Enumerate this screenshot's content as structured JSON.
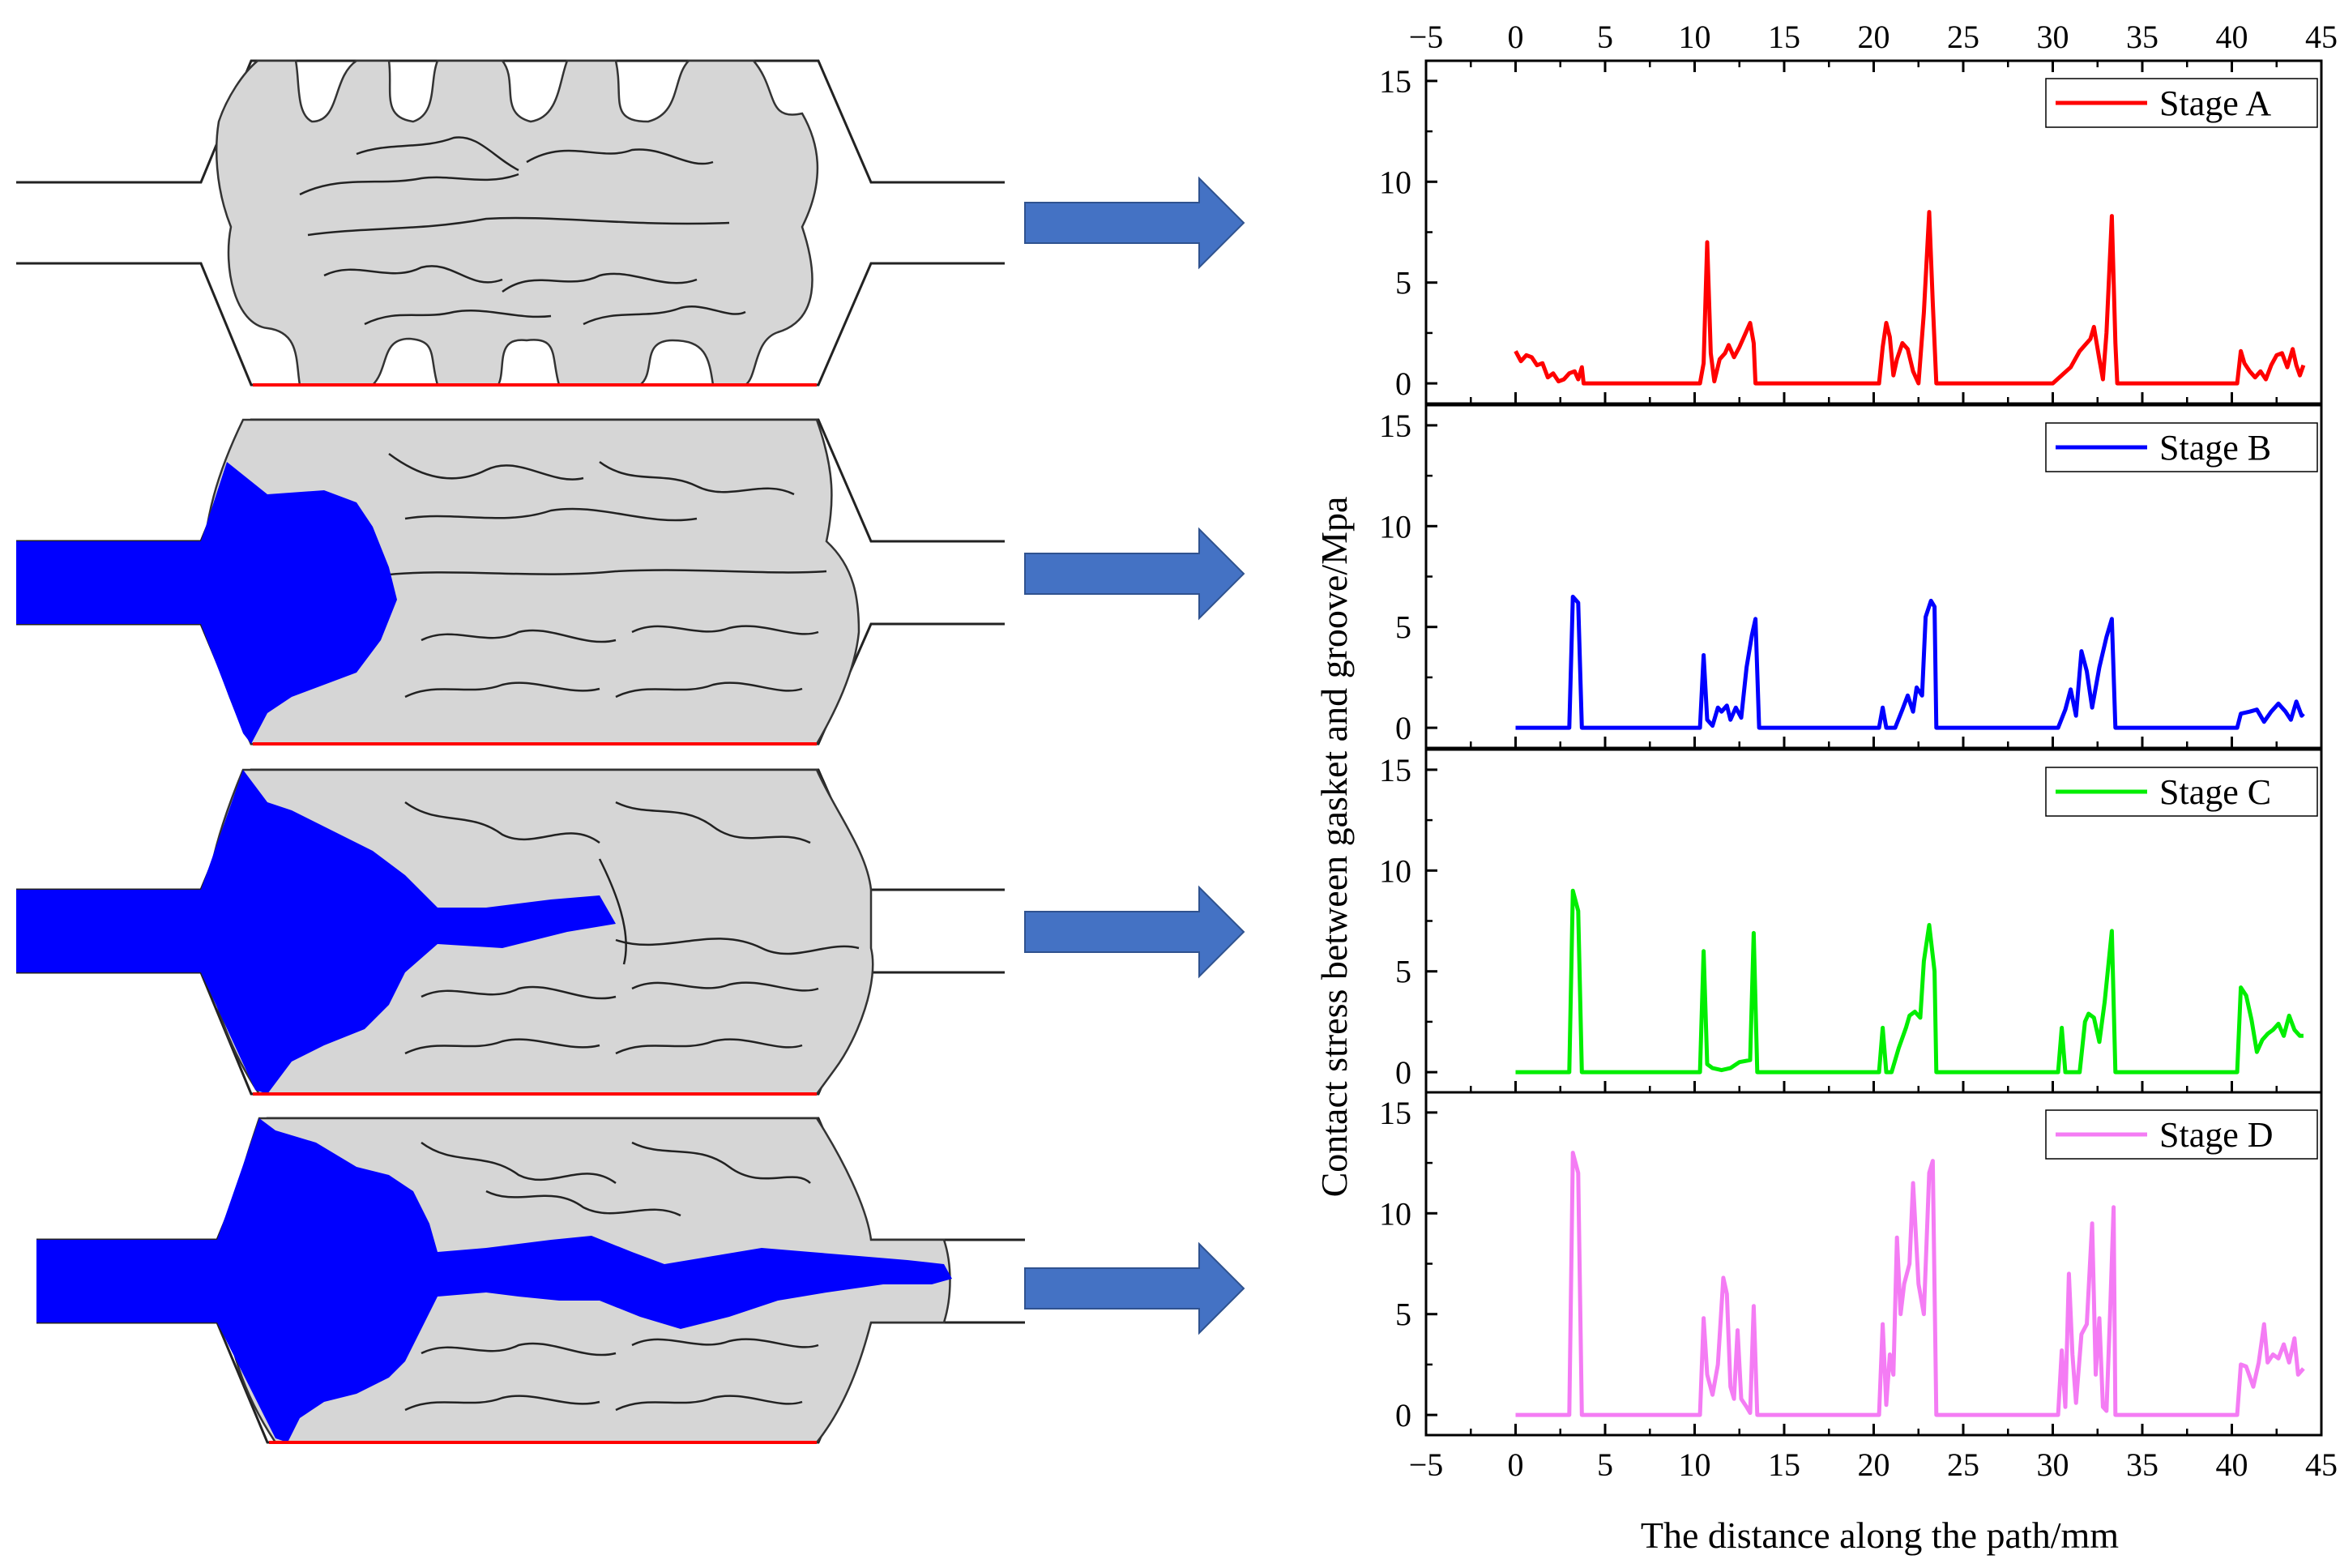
{
  "figure": {
    "y_axis_label": "Contact stress between gasket and groove/Mpa",
    "x_axis_label": "The distance along the path/mm",
    "x_ticks": [
      "−5",
      "0",
      "5",
      "10",
      "15",
      "20",
      "25",
      "30",
      "35",
      "40",
      "45"
    ],
    "y_ticks": [
      "0",
      "5",
      "10",
      "15"
    ]
  },
  "colors": {
    "gasket_fill": "#d6d6d6",
    "fluid_fill": "#0000ff",
    "arrow_fill": "#4472c4",
    "path_line": "#ff0000"
  },
  "chart_data": {
    "type": "line",
    "xlabel": "The distance along the path/mm",
    "ylabel": "Contact stress between gasket and groove/Mpa",
    "xlim": [
      -5,
      45
    ],
    "ylim": [
      -1,
      16
    ],
    "x_ticks": [
      -5,
      0,
      5,
      10,
      15,
      20,
      25,
      30,
      35,
      40,
      45
    ],
    "y_ticks": [
      0,
      5,
      10,
      15
    ],
    "series": [
      {
        "name": "Stage A",
        "color": "#ff0000",
        "points": [
          [
            0,
            1.6
          ],
          [
            0.3,
            1.1
          ],
          [
            0.6,
            1.4
          ],
          [
            0.9,
            1.3
          ],
          [
            1.2,
            0.9
          ],
          [
            1.5,
            1.0
          ],
          [
            1.8,
            0.3
          ],
          [
            2.1,
            0.5
          ],
          [
            2.4,
            0.1
          ],
          [
            2.7,
            0.2
          ],
          [
            3.0,
            0.5
          ],
          [
            3.3,
            0.6
          ],
          [
            3.5,
            0.2
          ],
          [
            3.7,
            0.8
          ],
          [
            3.8,
            0
          ],
          [
            10.3,
            0
          ],
          [
            10.5,
            1.0
          ],
          [
            10.7,
            7.0
          ],
          [
            10.9,
            1.5
          ],
          [
            11.1,
            0.1
          ],
          [
            11.4,
            1.2
          ],
          [
            11.7,
            1.5
          ],
          [
            11.9,
            1.9
          ],
          [
            12.2,
            1.3
          ],
          [
            12.5,
            1.8
          ],
          [
            12.8,
            2.4
          ],
          [
            13.1,
            3.0
          ],
          [
            13.3,
            2.0
          ],
          [
            13.4,
            0
          ],
          [
            20.3,
            0
          ],
          [
            20.5,
            1.8
          ],
          [
            20.7,
            3.0
          ],
          [
            20.9,
            2.3
          ],
          [
            21.1,
            0.4
          ],
          [
            21.3,
            1.2
          ],
          [
            21.6,
            2.0
          ],
          [
            21.9,
            1.7
          ],
          [
            22.2,
            0.6
          ],
          [
            22.5,
            0
          ],
          [
            22.8,
            3.5
          ],
          [
            23.1,
            8.5
          ],
          [
            23.3,
            4.0
          ],
          [
            23.5,
            0
          ],
          [
            30.0,
            0
          ],
          [
            31.0,
            0.8
          ],
          [
            31.5,
            1.6
          ],
          [
            32.1,
            2.2
          ],
          [
            32.3,
            2.8
          ],
          [
            32.6,
            1.2
          ],
          [
            32.8,
            0.2
          ],
          [
            33.0,
            2.5
          ],
          [
            33.3,
            8.3
          ],
          [
            33.5,
            2.0
          ],
          [
            33.6,
            0
          ],
          [
            40.3,
            0
          ],
          [
            40.5,
            1.6
          ],
          [
            40.7,
            1.0
          ],
          [
            41.0,
            0.6
          ],
          [
            41.3,
            0.3
          ],
          [
            41.6,
            0.6
          ],
          [
            41.9,
            0.2
          ],
          [
            42.2,
            0.9
          ],
          [
            42.5,
            1.4
          ],
          [
            42.8,
            1.5
          ],
          [
            43.1,
            0.8
          ],
          [
            43.4,
            1.7
          ],
          [
            43.6,
            0.9
          ],
          [
            43.8,
            0.4
          ],
          [
            44.0,
            0.9
          ]
        ]
      },
      {
        "name": "Stage B",
        "color": "#0000ff",
        "points": [
          [
            0,
            0
          ],
          [
            3.0,
            0
          ],
          [
            3.2,
            6.5
          ],
          [
            3.5,
            6.2
          ],
          [
            3.7,
            0
          ],
          [
            10.3,
            0
          ],
          [
            10.5,
            3.6
          ],
          [
            10.7,
            0.4
          ],
          [
            11.0,
            0.1
          ],
          [
            11.3,
            1.0
          ],
          [
            11.5,
            0.8
          ],
          [
            11.8,
            1.1
          ],
          [
            12.0,
            0.4
          ],
          [
            12.3,
            1.0
          ],
          [
            12.6,
            0.5
          ],
          [
            12.9,
            3.0
          ],
          [
            13.2,
            4.6
          ],
          [
            13.4,
            5.4
          ],
          [
            13.6,
            0
          ],
          [
            20.3,
            0
          ],
          [
            20.5,
            1.0
          ],
          [
            20.7,
            0
          ],
          [
            21.2,
            0
          ],
          [
            21.6,
            0.9
          ],
          [
            21.9,
            1.6
          ],
          [
            22.2,
            0.8
          ],
          [
            22.4,
            2.0
          ],
          [
            22.7,
            1.6
          ],
          [
            22.9,
            5.5
          ],
          [
            23.2,
            6.3
          ],
          [
            23.4,
            6.0
          ],
          [
            23.5,
            0
          ],
          [
            30.3,
            0
          ],
          [
            30.7,
            0.9
          ],
          [
            31.0,
            1.9
          ],
          [
            31.3,
            0.6
          ],
          [
            31.6,
            3.8
          ],
          [
            31.9,
            2.8
          ],
          [
            32.2,
            1.0
          ],
          [
            32.6,
            3.0
          ],
          [
            33.0,
            4.5
          ],
          [
            33.3,
            5.4
          ],
          [
            33.5,
            0
          ],
          [
            40.3,
            0
          ],
          [
            40.5,
            0.7
          ],
          [
            41.0,
            0.8
          ],
          [
            41.4,
            0.9
          ],
          [
            41.8,
            0.3
          ],
          [
            42.2,
            0.8
          ],
          [
            42.6,
            1.2
          ],
          [
            43.0,
            0.8
          ],
          [
            43.3,
            0.4
          ],
          [
            43.6,
            1.3
          ],
          [
            43.9,
            0.6
          ],
          [
            44.0,
            0.7
          ]
        ]
      },
      {
        "name": "Stage C",
        "color": "#00ee00",
        "points": [
          [
            0,
            0
          ],
          [
            3.0,
            0
          ],
          [
            3.2,
            9.0
          ],
          [
            3.5,
            8.0
          ],
          [
            3.7,
            0
          ],
          [
            10.3,
            0
          ],
          [
            10.5,
            6.0
          ],
          [
            10.7,
            0.4
          ],
          [
            11.0,
            0.2
          ],
          [
            11.5,
            0.1
          ],
          [
            12.0,
            0.2
          ],
          [
            12.5,
            0.5
          ],
          [
            13.1,
            0.6
          ],
          [
            13.3,
            6.9
          ],
          [
            13.5,
            0
          ],
          [
            20.3,
            0
          ],
          [
            20.5,
            2.2
          ],
          [
            20.7,
            0
          ],
          [
            21.0,
            0
          ],
          [
            21.4,
            1.2
          ],
          [
            21.8,
            2.2
          ],
          [
            22.0,
            2.8
          ],
          [
            22.3,
            3.0
          ],
          [
            22.6,
            2.7
          ],
          [
            22.8,
            5.5
          ],
          [
            23.1,
            7.3
          ],
          [
            23.4,
            5.0
          ],
          [
            23.5,
            0
          ],
          [
            30.3,
            0
          ],
          [
            30.5,
            2.2
          ],
          [
            30.7,
            0
          ],
          [
            31.5,
            0
          ],
          [
            31.8,
            2.5
          ],
          [
            32.0,
            2.9
          ],
          [
            32.3,
            2.7
          ],
          [
            32.6,
            1.5
          ],
          [
            32.9,
            3.5
          ],
          [
            33.3,
            7.0
          ],
          [
            33.5,
            0
          ],
          [
            40.3,
            0
          ],
          [
            40.5,
            4.2
          ],
          [
            40.8,
            3.8
          ],
          [
            41.1,
            2.6
          ],
          [
            41.4,
            1.0
          ],
          [
            41.7,
            1.6
          ],
          [
            42.0,
            1.9
          ],
          [
            42.3,
            2.1
          ],
          [
            42.6,
            2.4
          ],
          [
            42.9,
            1.8
          ],
          [
            43.2,
            2.8
          ],
          [
            43.5,
            2.1
          ],
          [
            43.8,
            1.8
          ],
          [
            44.0,
            1.8
          ]
        ]
      },
      {
        "name": "Stage D",
        "color": "#f47cf4",
        "points": [
          [
            0,
            0
          ],
          [
            3.0,
            0
          ],
          [
            3.2,
            13.0
          ],
          [
            3.5,
            12.0
          ],
          [
            3.7,
            0
          ],
          [
            10.3,
            0
          ],
          [
            10.5,
            4.8
          ],
          [
            10.7,
            2.0
          ],
          [
            11.0,
            1.0
          ],
          [
            11.3,
            2.5
          ],
          [
            11.6,
            6.8
          ],
          [
            11.8,
            6.0
          ],
          [
            12.0,
            1.4
          ],
          [
            12.2,
            0.8
          ],
          [
            12.4,
            4.2
          ],
          [
            12.6,
            0.8
          ],
          [
            12.9,
            0.4
          ],
          [
            13.1,
            0.1
          ],
          [
            13.3,
            5.4
          ],
          [
            13.5,
            0
          ],
          [
            20.3,
            0
          ],
          [
            20.5,
            4.5
          ],
          [
            20.7,
            0.5
          ],
          [
            20.9,
            3.0
          ],
          [
            21.1,
            2.0
          ],
          [
            21.3,
            8.8
          ],
          [
            21.5,
            5.0
          ],
          [
            21.7,
            6.5
          ],
          [
            22.0,
            7.5
          ],
          [
            22.2,
            11.5
          ],
          [
            22.5,
            6.5
          ],
          [
            22.8,
            5.0
          ],
          [
            23.1,
            12.0
          ],
          [
            23.3,
            12.6
          ],
          [
            23.5,
            0
          ],
          [
            30.3,
            0
          ],
          [
            30.5,
            3.2
          ],
          [
            30.7,
            0.4
          ],
          [
            30.9,
            7.0
          ],
          [
            31.1,
            3.0
          ],
          [
            31.3,
            0.6
          ],
          [
            31.6,
            4.0
          ],
          [
            31.9,
            4.5
          ],
          [
            32.2,
            9.5
          ],
          [
            32.4,
            2.0
          ],
          [
            32.6,
            4.8
          ],
          [
            32.8,
            0.4
          ],
          [
            33.0,
            0.2
          ],
          [
            33.2,
            5.0
          ],
          [
            33.4,
            10.3
          ],
          [
            33.5,
            0
          ],
          [
            40.3,
            0
          ],
          [
            40.5,
            2.5
          ],
          [
            40.8,
            2.4
          ],
          [
            41.2,
            1.4
          ],
          [
            41.5,
            2.6
          ],
          [
            41.8,
            4.5
          ],
          [
            42.0,
            2.6
          ],
          [
            42.3,
            3.0
          ],
          [
            42.6,
            2.8
          ],
          [
            42.9,
            3.5
          ],
          [
            43.2,
            2.6
          ],
          [
            43.5,
            3.8
          ],
          [
            43.7,
            2.0
          ],
          [
            44.0,
            2.3
          ]
        ]
      }
    ]
  }
}
